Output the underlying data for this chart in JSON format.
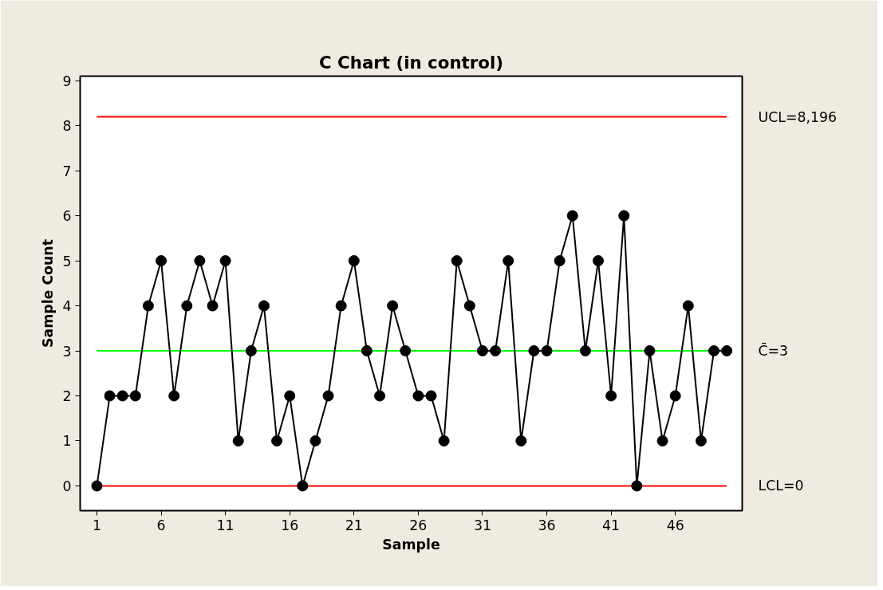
{
  "chart_data": {
    "type": "line",
    "title": "C Chart (in control)",
    "xlabel": "Sample",
    "ylabel": "Sample Count",
    "x": [
      1,
      2,
      3,
      4,
      5,
      6,
      7,
      8,
      9,
      10,
      11,
      12,
      13,
      14,
      15,
      16,
      17,
      18,
      19,
      20,
      21,
      22,
      23,
      24,
      25,
      26,
      27,
      28,
      29,
      30,
      31,
      32,
      33,
      34,
      35,
      36,
      37,
      38,
      39,
      40,
      41,
      42,
      43,
      44,
      45,
      46,
      47,
      48,
      49,
      50
    ],
    "series": [
      {
        "color": "#000000",
        "values": [
          0,
          2,
          2,
          2,
          4,
          5,
          2,
          4,
          5,
          4,
          5,
          1,
          3,
          4,
          1,
          2,
          0,
          1,
          2,
          4,
          5,
          3,
          2,
          4,
          3,
          2,
          2,
          1,
          5,
          4,
          3,
          3,
          5,
          1,
          3,
          3,
          5,
          6,
          3,
          5,
          2,
          6,
          0,
          3,
          1,
          2,
          4,
          1,
          3,
          3
        ]
      }
    ],
    "xlim": [
      -0.3,
      51.2
    ],
    "xticks": [
      1,
      6,
      11,
      16,
      21,
      26,
      31,
      36,
      41,
      46
    ],
    "ylim": [
      -0.55,
      9.1
    ],
    "yticks": [
      0,
      1,
      2,
      3,
      4,
      5,
      6,
      7,
      8,
      9
    ],
    "ref_lines": [
      {
        "axis": "y",
        "value": 8.196,
        "label": "UCL=8,196",
        "color": "#ff0000"
      },
      {
        "axis": "y",
        "value": 3,
        "label": "C̄=3",
        "color": "#00ff00"
      },
      {
        "axis": "y",
        "value": 0,
        "label": "LCL=0",
        "color": "#ff0000"
      }
    ],
    "grid": false,
    "marker": "circle",
    "line_style": "solid"
  }
}
